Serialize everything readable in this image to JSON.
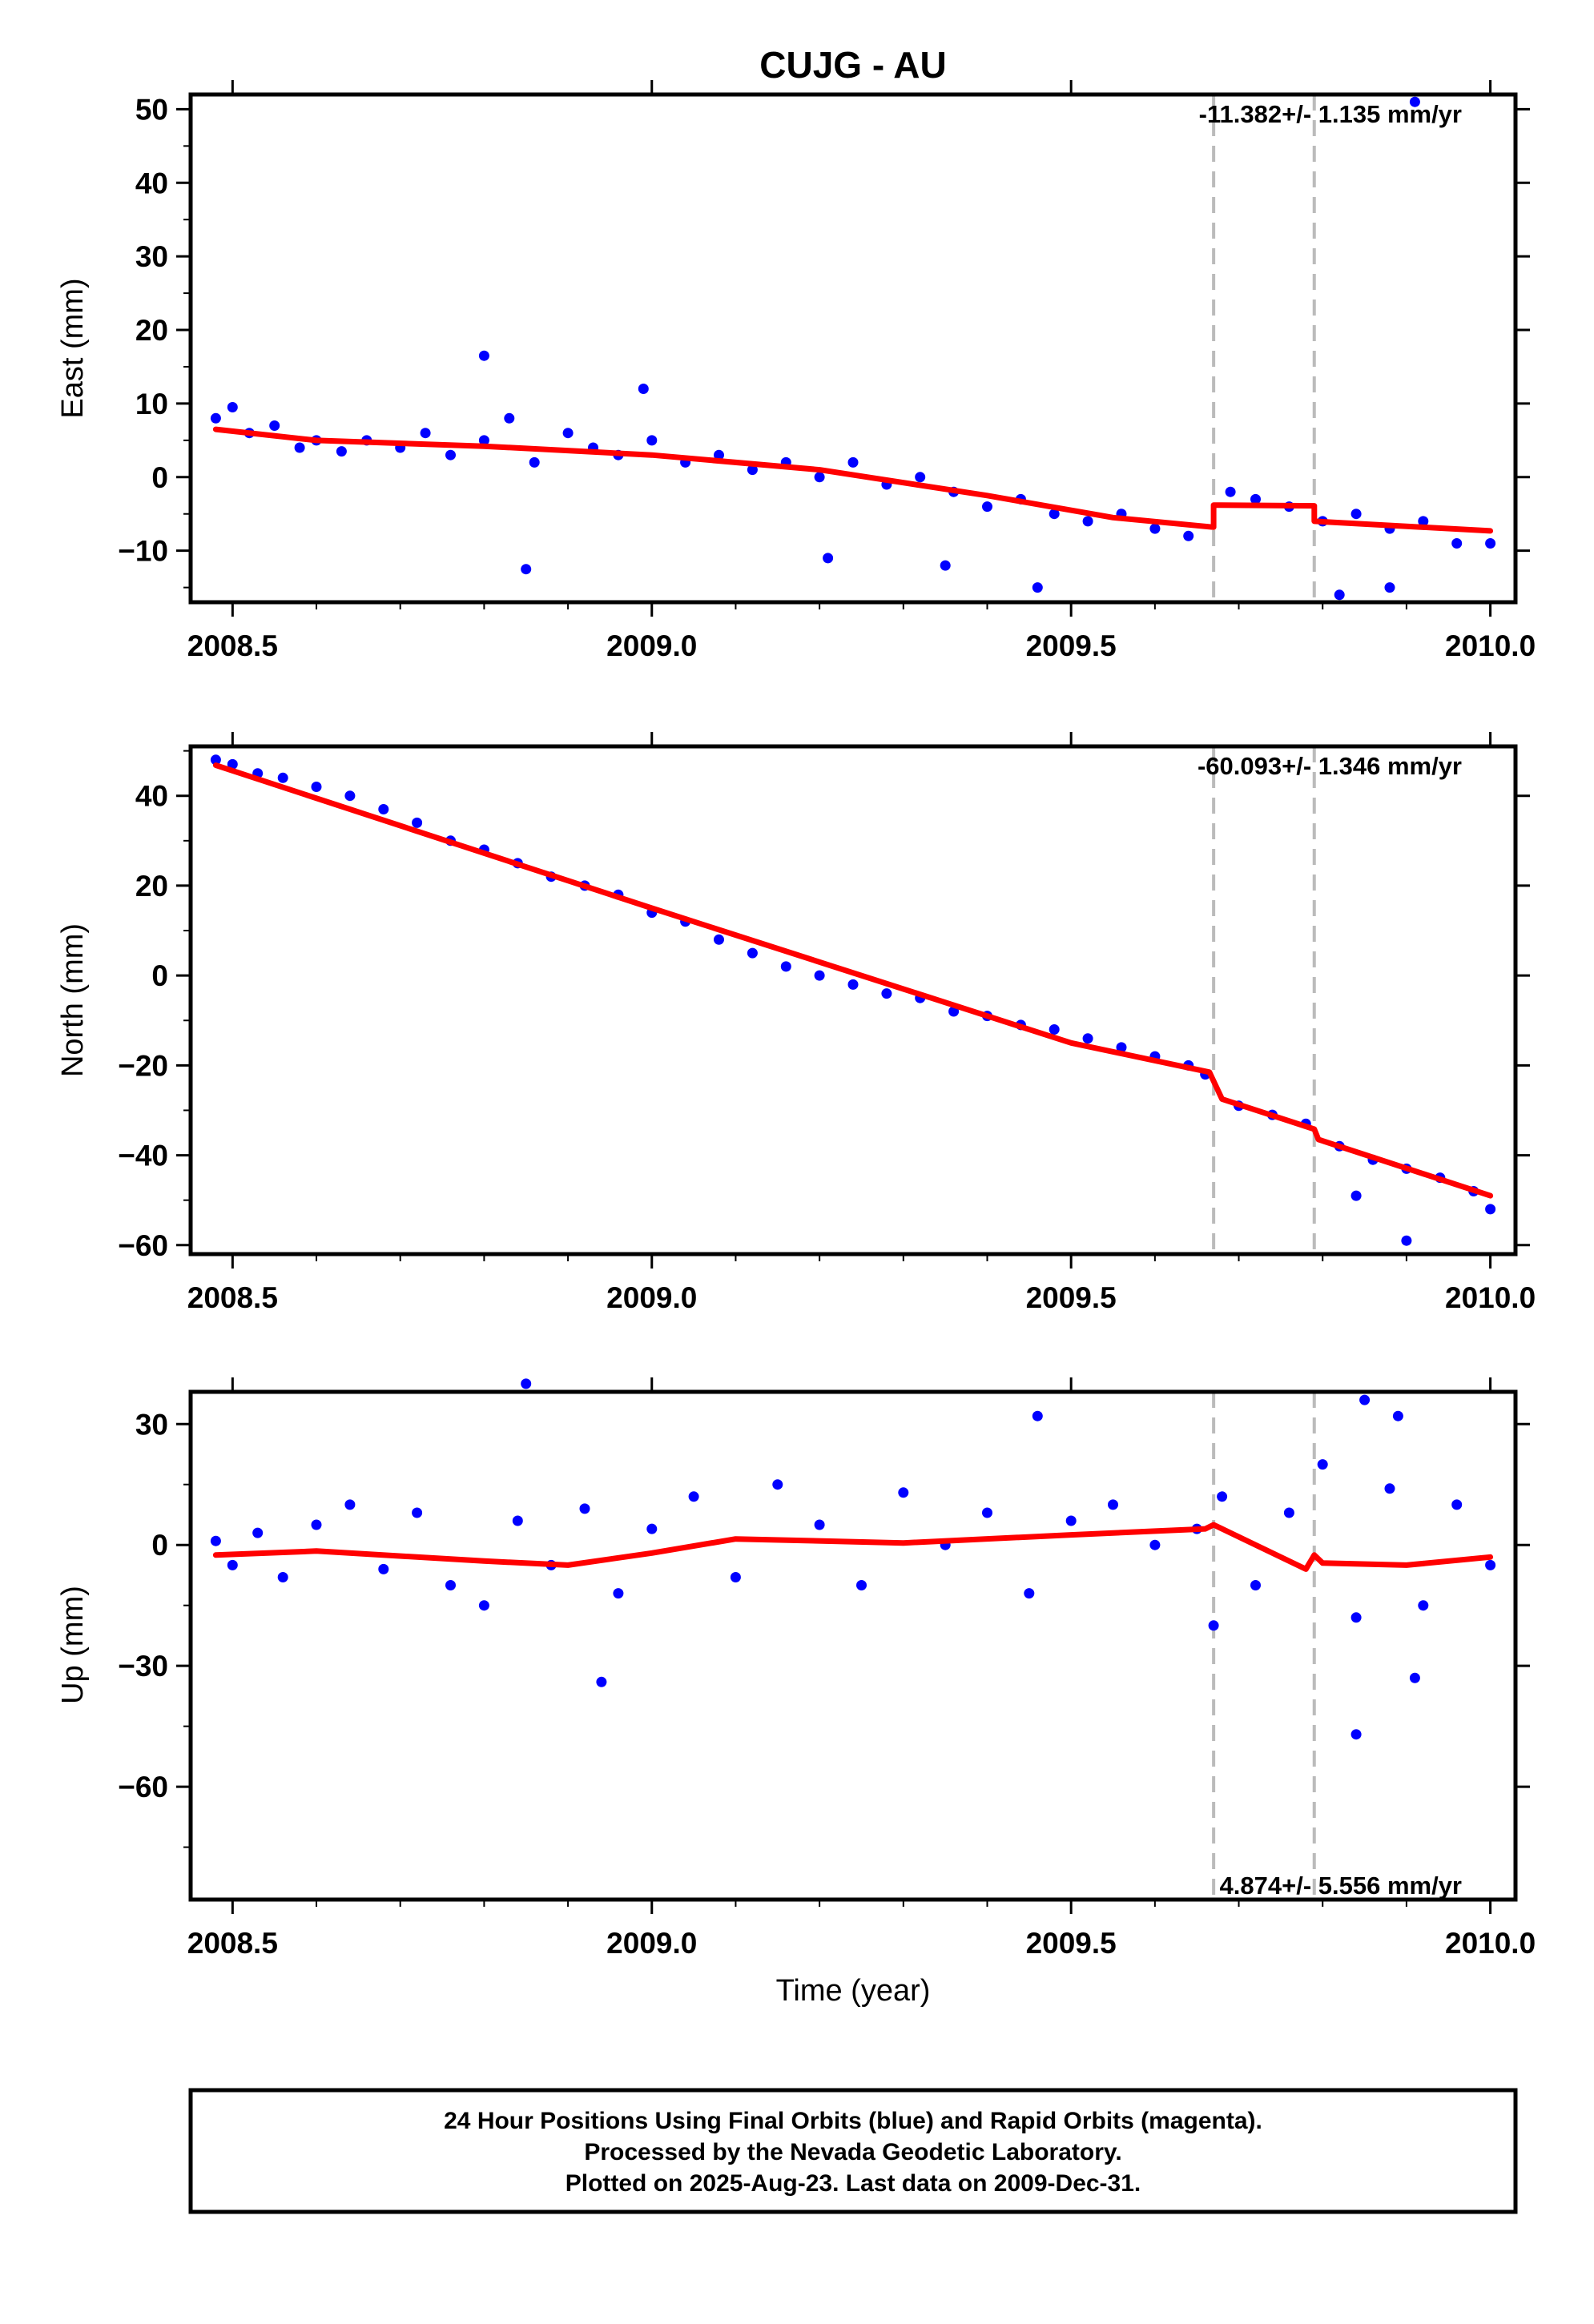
{
  "title": "CUJG - AU",
  "xlabel": "Time (year)",
  "x_tick_labels": [
    "2008.5",
    "2009.0",
    "2009.5",
    "2010.0"
  ],
  "footer_lines": [
    "24 Hour Positions Using Final Orbits (blue) and Rapid Orbits (magenta).",
    "Processed by the Nevada Geodetic Laboratory.",
    "Plotted on 2025-Aug-23. Last data on 2009-Dec-31."
  ],
  "colors": {
    "points": "#0000ff",
    "fit": "#ff0000",
    "steps": "#bbbbbb"
  },
  "chart_data": [
    {
      "type": "scatter",
      "ylabel": "East (mm)",
      "rate_label": "-11.382+/- 1.135 mm/yr",
      "xlim": [
        2008.45,
        2010.03
      ],
      "ylim": [
        -17,
        52
      ],
      "yticks": [
        -10,
        0,
        10,
        20,
        30,
        40,
        50
      ],
      "step_lines_x": [
        2009.67,
        2009.79
      ],
      "fit": {
        "x": [
          2008.48,
          2008.6,
          2008.8,
          2009.0,
          2009.2,
          2009.4,
          2009.55,
          2009.67,
          2009.67,
          2009.79,
          2009.79,
          2010.0
        ],
        "y": [
          6.5,
          5,
          4.2,
          3,
          1,
          -2.5,
          -5.5,
          -6.8,
          -3.8,
          -3.9,
          -6,
          -7.3
        ]
      },
      "points": {
        "x": [
          2008.48,
          2008.5,
          2008.52,
          2008.55,
          2008.58,
          2008.6,
          2008.63,
          2008.66,
          2008.7,
          2008.73,
          2008.76,
          2008.8,
          2008.83,
          2008.86,
          2008.9,
          2008.93,
          2008.96,
          2009.0,
          2009.04,
          2009.08,
          2009.12,
          2009.16,
          2009.2,
          2009.24,
          2009.28,
          2009.32,
          2009.36,
          2009.4,
          2009.44,
          2009.48,
          2009.52,
          2009.56,
          2009.6,
          2009.64,
          2009.69,
          2009.72,
          2009.76,
          2009.8,
          2009.84,
          2009.88,
          2009.92,
          2009.96,
          2010.0,
          2008.8,
          2008.85,
          2008.99,
          2009.21,
          2009.35,
          2009.46,
          2009.82,
          2009.91,
          2009.88
        ],
        "y": [
          8,
          9.5,
          6,
          7,
          4,
          5,
          3.5,
          5,
          4,
          6,
          3,
          5,
          8,
          2,
          6,
          4,
          3,
          5,
          2,
          3,
          1,
          2,
          0,
          2,
          -1,
          0,
          -2,
          -4,
          -3,
          -5,
          -6,
          -5,
          -7,
          -8,
          -2,
          -3,
          -4,
          -6,
          -5,
          -7,
          -6,
          -9,
          -9,
          16.5,
          -12.5,
          12,
          -11,
          -12,
          -15,
          -16,
          51,
          -15
        ]
      }
    },
    {
      "type": "scatter",
      "ylabel": "North (mm)",
      "rate_label": "-60.093+/- 1.346 mm/yr",
      "xlim": [
        2008.45,
        2010.03
      ],
      "ylim": [
        -62,
        51
      ],
      "yticks": [
        -60,
        -40,
        -20,
        0,
        20,
        40
      ],
      "step_lines_x": [
        2009.67,
        2009.79
      ],
      "fit": {
        "x": [
          2008.48,
          2009.0,
          2009.5,
          2009.665,
          2009.68,
          2009.79,
          2009.795,
          2010.0
        ],
        "y": [
          46.8,
          15,
          -15,
          -21.5,
          -27.5,
          -34.2,
          -36.5,
          -49
        ]
      },
      "points": {
        "x": [
          2008.48,
          2008.5,
          2008.53,
          2008.56,
          2008.6,
          2008.64,
          2008.68,
          2008.72,
          2008.76,
          2008.8,
          2008.84,
          2008.88,
          2008.92,
          2008.96,
          2009.0,
          2009.04,
          2009.08,
          2009.12,
          2009.16,
          2009.2,
          2009.24,
          2009.28,
          2009.32,
          2009.36,
          2009.4,
          2009.44,
          2009.48,
          2009.52,
          2009.56,
          2009.6,
          2009.64,
          2009.66,
          2009.7,
          2009.74,
          2009.78,
          2009.82,
          2009.86,
          2009.9,
          2009.94,
          2009.98,
          2010.0,
          2009.9,
          2009.84
        ],
        "y": [
          48,
          47,
          45,
          44,
          42,
          40,
          37,
          34,
          30,
          28,
          25,
          22,
          20,
          18,
          14,
          12,
          8,
          5,
          2,
          0,
          -2,
          -4,
          -5,
          -8,
          -9,
          -11,
          -12,
          -14,
          -16,
          -18,
          -20,
          -22,
          -29,
          -31,
          -33,
          -38,
          -41,
          -43,
          -45,
          -48,
          -52,
          -59,
          -49
        ]
      }
    },
    {
      "type": "scatter",
      "ylabel": "Up (mm)",
      "rate_label": "4.874+/- 5.556 mm/yr",
      "xlim": [
        2008.45,
        2010.03
      ],
      "ylim": [
        -88,
        38
      ],
      "yticks": [
        -60,
        -30,
        0,
        30
      ],
      "step_lines_x": [
        2009.67,
        2009.79
      ],
      "fit": {
        "x": [
          2008.48,
          2008.6,
          2008.8,
          2008.9,
          2009.0,
          2009.1,
          2009.3,
          2009.5,
          2009.66,
          2009.67,
          2009.78,
          2009.79,
          2009.8,
          2009.9,
          2010.0
        ],
        "y": [
          -2.5,
          -1.5,
          -4,
          -5,
          -2,
          1.5,
          0.5,
          2.5,
          4,
          5,
          -6,
          -2.5,
          -4.5,
          -5,
          -3
        ]
      },
      "points": {
        "x": [
          2008.48,
          2008.5,
          2008.53,
          2008.56,
          2008.6,
          2008.64,
          2008.68,
          2008.72,
          2008.76,
          2008.8,
          2008.84,
          2008.88,
          2008.92,
          2008.96,
          2009.0,
          2009.05,
          2009.1,
          2009.15,
          2009.2,
          2009.25,
          2009.3,
          2009.35,
          2009.4,
          2009.45,
          2009.5,
          2009.55,
          2009.6,
          2009.65,
          2009.68,
          2009.72,
          2009.76,
          2009.8,
          2009.84,
          2009.88,
          2009.92,
          2009.96,
          2010.0,
          2008.85,
          2008.94,
          2009.46,
          2009.85,
          2009.84,
          2009.89,
          2009.91,
          2009.67
        ],
        "y": [
          1,
          -5,
          3,
          -8,
          5,
          10,
          -6,
          8,
          -10,
          -15,
          6,
          -5,
          9,
          -12,
          4,
          12,
          -8,
          15,
          5,
          -10,
          13,
          0,
          8,
          -12,
          6,
          10,
          0,
          4,
          12,
          -10,
          8,
          20,
          -18,
          14,
          -15,
          10,
          -5,
          40,
          -34,
          32,
          36,
          -47,
          32,
          -33,
          -20
        ]
      }
    }
  ]
}
